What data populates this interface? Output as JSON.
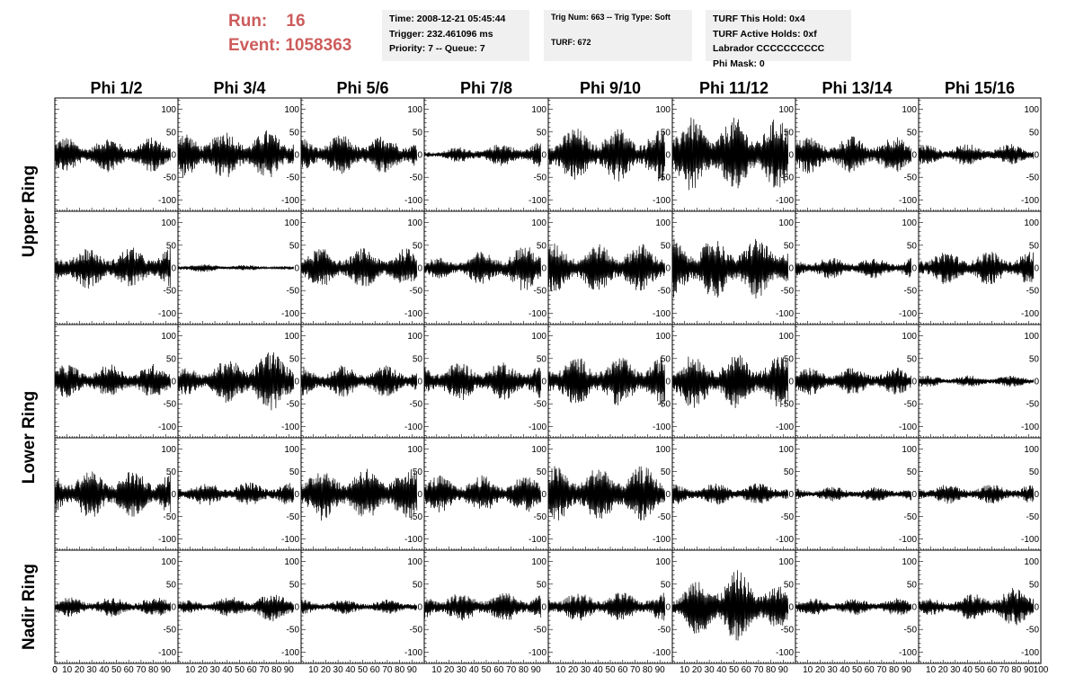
{
  "header": {
    "run_label": "Run:",
    "run_value": "16",
    "event_label": "Event:",
    "event_value": "1058363"
  },
  "info_boxes": {
    "time": "Time: 2008-12-21 05:45:44",
    "trigger": "Trigger: 232.461096 ms",
    "priority": "Priority: 7 -- Queue: 7",
    "trig_num": "Trig Num: 663 -- Trig Type: Soft",
    "turf": "TURF: 672",
    "turf_hold": "TURF This Hold: 0x4",
    "turf_active": "TURF Active Holds: 0xf",
    "labrador": "Labrador CCCCCCCCCC",
    "phi_mask": "Phi Mask: 0"
  },
  "colors": {
    "header_text": "#cd5c5c",
    "info_bg": "#f0f0f0",
    "trace": "#000000"
  },
  "chart_data": {
    "type": "line",
    "description_columns": [
      "Phi 1/2",
      "Phi 3/4",
      "Phi 5/6",
      "Phi 7/8",
      "Phi 9/10",
      "Phi 11/12",
      "Phi 13/14",
      "Phi 15/16"
    ],
    "ring_labels": [
      "Upper Ring",
      "Lower Ring",
      "Nadir Ring"
    ],
    "ring_rows": [
      [
        0,
        1
      ],
      [
        2,
        3
      ],
      [
        4
      ]
    ],
    "x_ticks": [
      0,
      10,
      20,
      30,
      40,
      50,
      60,
      70,
      80,
      90,
      100
    ],
    "x_tick_labels_last_panel": [
      "10",
      "20",
      "30",
      "40",
      "50",
      "60",
      "70",
      "80",
      "90",
      "100"
    ],
    "xlim": [
      0,
      100
    ],
    "ylim": [
      -125,
      125
    ],
    "y_ticks": [
      -100,
      -50,
      0,
      50,
      100
    ],
    "samples_per_trace": 260,
    "x_end": 94,
    "amplitude": [
      [
        35,
        50,
        40,
        22,
        55,
        75,
        38,
        22
      ],
      [
        42,
        8,
        40,
        38,
        50,
        62,
        22,
        35
      ],
      [
        35,
        55,
        32,
        40,
        50,
        55,
        28,
        12
      ],
      [
        50,
        25,
        55,
        38,
        58,
        22,
        15,
        20
      ],
      [
        20,
        25,
        15,
        30,
        30,
        60,
        18,
        32
      ]
    ],
    "trend": [
      [
        "flat",
        "flat",
        "flat",
        "rise",
        "flat",
        "flat",
        "flat",
        "flat"
      ],
      [
        "flat",
        "fall",
        "flat",
        "rise",
        "flat",
        "flat",
        "flat",
        "flat"
      ],
      [
        "flat",
        "rise",
        "flat",
        "flat",
        "flat",
        "flat",
        "flat",
        "flat"
      ],
      [
        "flat",
        "flat",
        "flat",
        "flat",
        "flat",
        "flat",
        "flat",
        "flat"
      ],
      [
        "flat",
        "rise",
        "flat",
        "flat",
        "flat",
        "mid",
        "flat",
        "rise"
      ]
    ]
  }
}
